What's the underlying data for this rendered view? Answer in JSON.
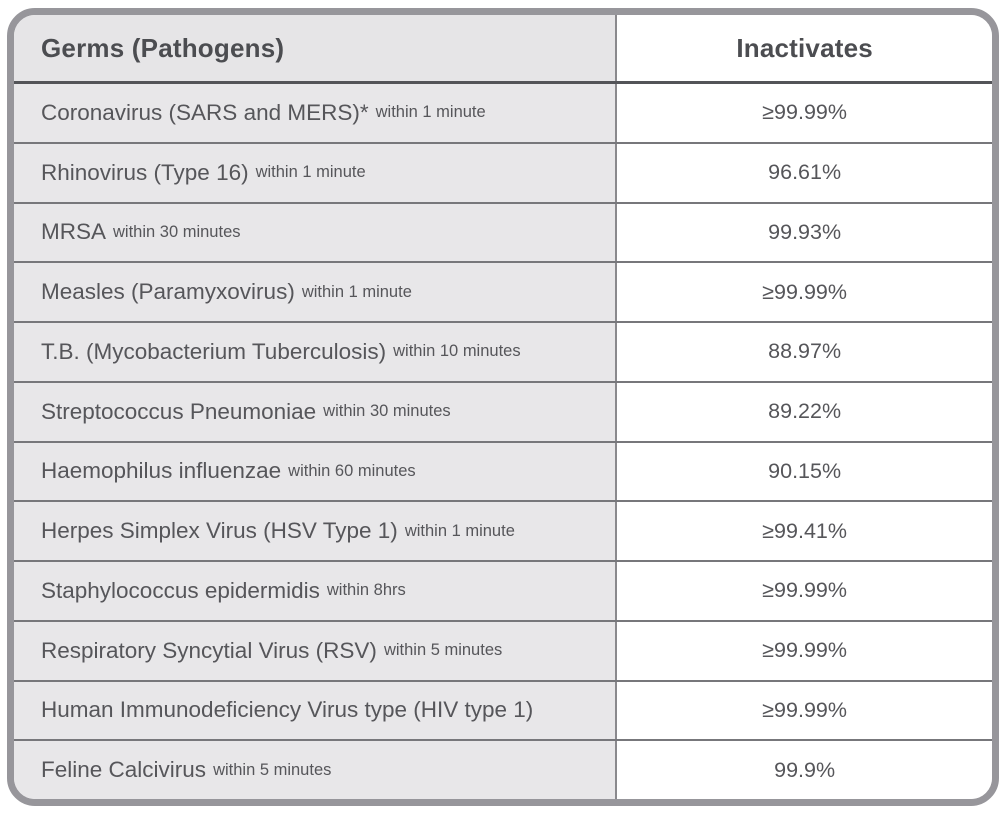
{
  "chart_data": {
    "type": "table",
    "columns": [
      "Germs (Pathogens)",
      "Inactivates"
    ],
    "rows": [
      {
        "pathogen": "Coronavirus (SARS and MERS)*",
        "duration": "within 1 minute",
        "inactivates": "≥99.99%"
      },
      {
        "pathogen": "Rhinovirus (Type 16)",
        "duration": "within 1 minute",
        "inactivates": "96.61%"
      },
      {
        "pathogen": "MRSA",
        "duration": "within 30 minutes",
        "inactivates": "99.93%"
      },
      {
        "pathogen": "Measles (Paramyxovirus)",
        "duration": "within 1 minute",
        "inactivates": "≥99.99%"
      },
      {
        "pathogen": "T.B. (Mycobacterium Tuberculosis)",
        "duration": "within 10 minutes",
        "inactivates": "88.97%"
      },
      {
        "pathogen": "Streptococcus Pneumoniae",
        "duration": "within 30 minutes",
        "inactivates": "89.22%"
      },
      {
        "pathogen": "Haemophilus influenzae",
        "duration": "within 60 minutes",
        "inactivates": "90.15%"
      },
      {
        "pathogen": "Herpes Simplex Virus (HSV Type 1)",
        "duration": "within 1 minute",
        "inactivates": "≥99.41%"
      },
      {
        "pathogen": "Staphylococcus epidermidis",
        "duration": "within 8hrs",
        "inactivates": "≥99.99%"
      },
      {
        "pathogen": "Respiratory Syncytial Virus (RSV)",
        "duration": "within 5 minutes",
        "inactivates": "≥99.99%"
      },
      {
        "pathogen": "Human Immunodeficiency Virus type (HIV type 1)",
        "duration": "",
        "inactivates": "≥99.99%"
      },
      {
        "pathogen": "Feline Calcivirus",
        "duration": "within 5 minutes",
        "inactivates": "99.9%"
      }
    ]
  },
  "colors": {
    "card_border": "#97969b",
    "left_column_bg": "#e8e7e9",
    "row_separator": "#77777b",
    "header_separator": "#535458",
    "column_divider": "#8a898d",
    "text": "#56565a",
    "header_text": "#4c4d51",
    "right_column_bg": "#ffffff"
  }
}
